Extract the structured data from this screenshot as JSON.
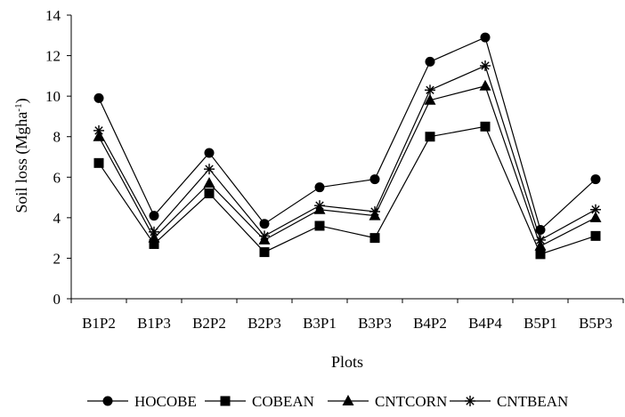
{
  "chart_data": {
    "type": "line",
    "categories": [
      "B1P2",
      "B1P3",
      "B2P2",
      "B2P3",
      "B3P1",
      "B3P3",
      "B4P2",
      "B4P4",
      "B5P1",
      "B5P3"
    ],
    "series": [
      {
        "name": "HOCOBE",
        "marker": "circle",
        "values": [
          9.9,
          4.1,
          7.2,
          3.7,
          5.5,
          5.9,
          11.7,
          12.9,
          3.4,
          5.9
        ]
      },
      {
        "name": "COBEAN",
        "marker": "square",
        "values": [
          6.7,
          2.7,
          5.2,
          2.3,
          3.6,
          3.0,
          8.0,
          8.5,
          2.2,
          3.1
        ]
      },
      {
        "name": "CNTCORN",
        "marker": "triangle",
        "values": [
          8.0,
          3.0,
          5.7,
          2.9,
          4.4,
          4.1,
          9.8,
          10.5,
          2.6,
          4.0
        ]
      },
      {
        "name": "CNTBEAN",
        "marker": "star",
        "values": [
          8.3,
          3.3,
          6.4,
          3.1,
          4.6,
          4.3,
          10.3,
          11.5,
          2.9,
          4.4
        ]
      }
    ],
    "title": "",
    "xlabel": "Plots",
    "ylabel": "Soil loss (Mgha",
    "ylabel_sup": "-1",
    "ylabel_close": ")",
    "ylim": [
      0,
      14
    ],
    "yticks": [
      "0",
      "2",
      "4",
      "6",
      "8",
      "10",
      "12",
      "14"
    ],
    "ytick_values": [
      0,
      2,
      4,
      6,
      8,
      10,
      12,
      14
    ],
    "grid": false,
    "legend_position": "bottom",
    "colors": {
      "line": "#000000",
      "background": "#ffffff"
    }
  }
}
